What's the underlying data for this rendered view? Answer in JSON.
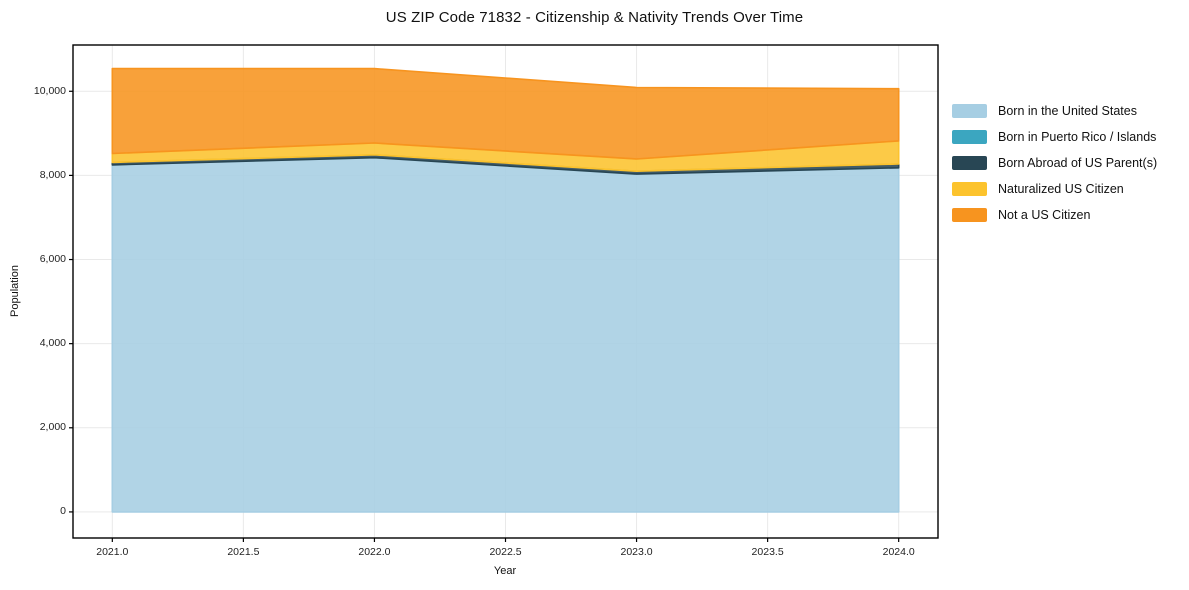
{
  "chart_data": {
    "type": "area",
    "stacked": true,
    "title": "US ZIP Code 71832 - Citizenship & Nativity Trends Over Time",
    "xlabel": "Year",
    "ylabel": "Population",
    "x": [
      2021,
      2022,
      2023,
      2024
    ],
    "series": [
      {
        "name": "Born in the United States",
        "color": "#a6cee3",
        "values": [
          8250,
          8420,
          8030,
          8180
        ]
      },
      {
        "name": "Born in Puerto Rico / Islands",
        "color": "#3ba6c0",
        "values": [
          0,
          0,
          0,
          0
        ]
      },
      {
        "name": "Born Abroad of US Parent(s)",
        "color": "#284654",
        "values": [
          60,
          70,
          70,
          90
        ]
      },
      {
        "name": "Naturalized US Citizen",
        "color": "#fcc32d",
        "values": [
          210,
          280,
          290,
          550
        ]
      },
      {
        "name": "Not a US Citizen",
        "color": "#f7941f",
        "values": [
          2020,
          1770,
          1700,
          1240
        ]
      }
    ],
    "totals": [
      10540,
      10540,
      10090,
      10060
    ],
    "xticks": [
      2021.0,
      2021.5,
      2022.0,
      2022.5,
      2023.0,
      2023.5,
      2024.0
    ],
    "xtick_labels": [
      "2021.0",
      "2021.5",
      "2022.0",
      "2022.5",
      "2023.0",
      "2023.5",
      "2024.0"
    ],
    "yticks": [
      0,
      2000,
      4000,
      6000,
      8000,
      10000
    ],
    "ytick_labels": [
      "0",
      "2,000",
      "4,000",
      "6,000",
      "8,000",
      "10,000"
    ],
    "xlim": [
      2020.85,
      2024.15
    ],
    "ylim": [
      -620,
      11100
    ],
    "grid": true,
    "legend_position": "right",
    "background_color": "#ffffff",
    "gridline_color": "#e9e9e9",
    "spine_color": "#000000"
  }
}
